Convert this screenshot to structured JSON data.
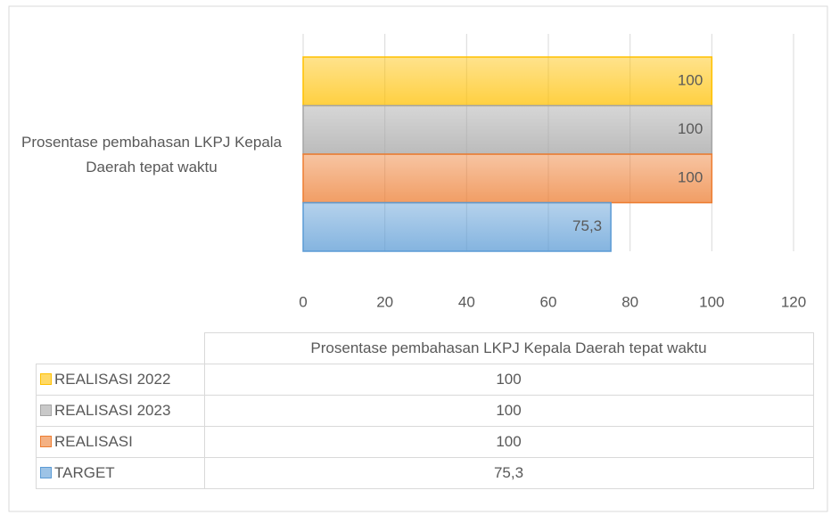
{
  "chart_data": {
    "type": "bar",
    "orientation": "horizontal",
    "categories": [
      "Prosentase pembahasan LKPJ Kepala Daerah tepat waktu"
    ],
    "series": [
      {
        "name": "REALISASI 2022",
        "color": "#ffc000",
        "values": [
          100
        ]
      },
      {
        "name": "REALISASI 2023",
        "color": "#a5a5a5",
        "values": [
          100
        ]
      },
      {
        "name": "REALISASI",
        "color": "#ed7d31",
        "values": [
          100
        ]
      },
      {
        "name": "TARGET",
        "color": "#5b9bd5",
        "values": [
          75.3
        ],
        "value_labels": [
          "75,3"
        ]
      }
    ],
    "xlim": [
      0,
      120
    ],
    "xticks": [
      0,
      20,
      40,
      60,
      80,
      100,
      120
    ],
    "grid": true,
    "data_table": true
  }
}
